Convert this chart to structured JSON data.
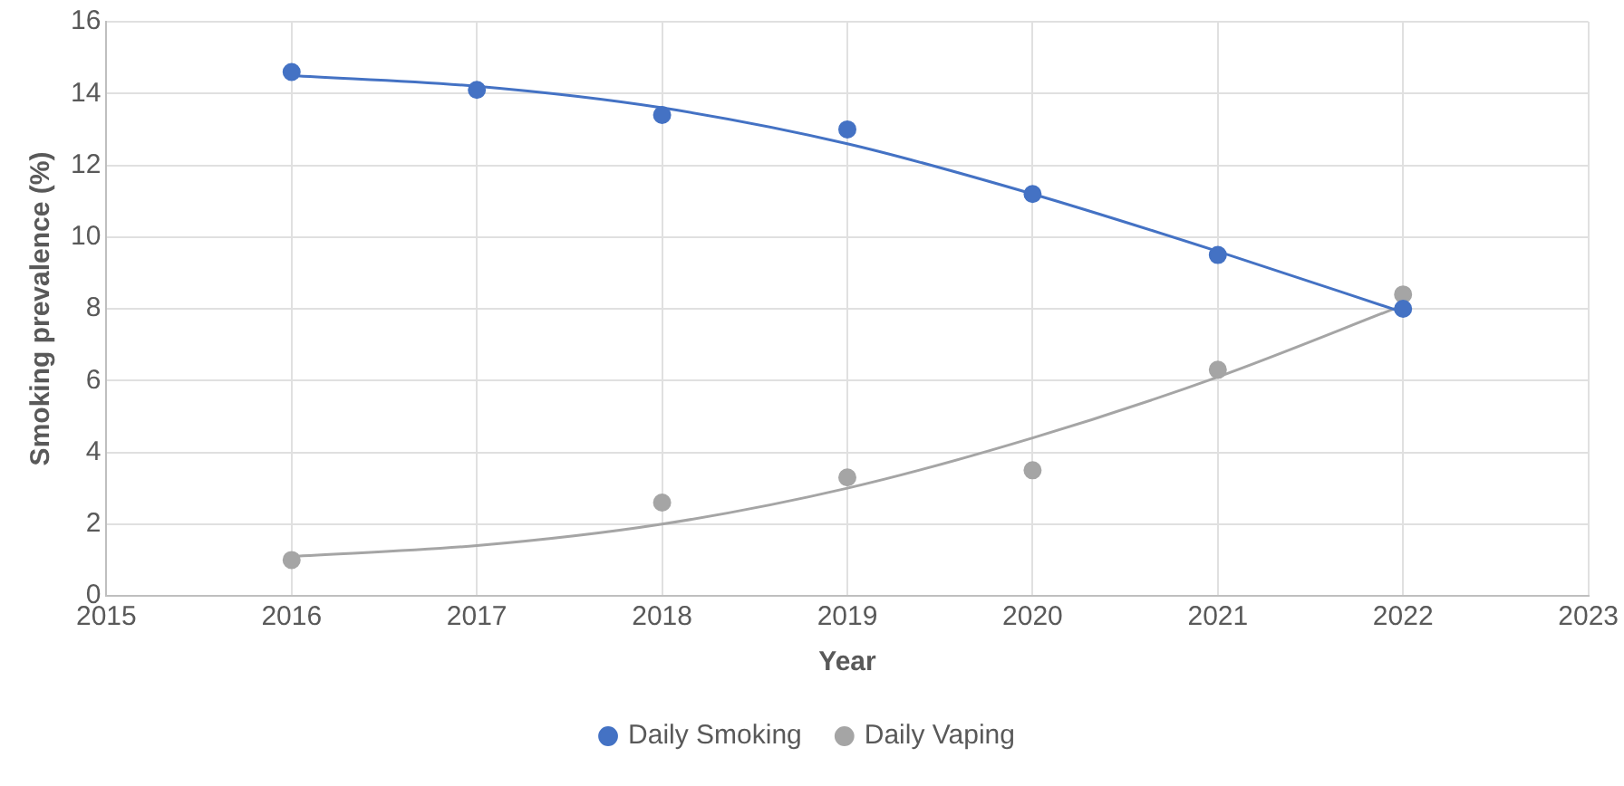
{
  "chart_data": {
    "type": "scatter",
    "xlabel": "Year",
    "ylabel": "Smoking prevalence (%)",
    "xlim": [
      2015,
      2023
    ],
    "xticks": [
      2015,
      2016,
      2017,
      2018,
      2019,
      2020,
      2021,
      2022,
      2023
    ],
    "ylim": [
      0,
      16
    ],
    "yticks": [
      0,
      2,
      4,
      6,
      8,
      10,
      12,
      14,
      16
    ],
    "grid": true,
    "legend": "bottom",
    "marker": "circle",
    "series": [
      {
        "name": "Daily Smoking",
        "color": "#4472c4",
        "x": [
          2016,
          2017,
          2018,
          2019,
          2020,
          2021,
          2022
        ],
        "values": [
          14.6,
          14.1,
          13.4,
          13.0,
          11.2,
          9.5,
          8.0
        ]
      },
      {
        "name": "Daily Vaping",
        "color": "#a5a5a5",
        "x": [
          2016,
          2017,
          2018,
          2019,
          2020,
          2021,
          2022
        ],
        "values": [
          1.0,
          null,
          2.6,
          3.3,
          3.5,
          6.3,
          8.4
        ]
      },
      {
        "type": "line",
        "color": "#4472c4",
        "marker": "none",
        "x": [
          2016,
          2017,
          2018,
          2019,
          2020,
          2021,
          2022
        ],
        "values": [
          14.5,
          14.2,
          13.6,
          12.6,
          11.2,
          9.6,
          7.9
        ]
      },
      {
        "type": "line",
        "color": "#a5a5a5",
        "marker": "none",
        "x": [
          2016,
          2017,
          2018,
          2019,
          2020,
          2021,
          2022
        ],
        "values": [
          1.1,
          1.4,
          2.0,
          3.0,
          4.4,
          6.1,
          8.1
        ]
      }
    ]
  }
}
